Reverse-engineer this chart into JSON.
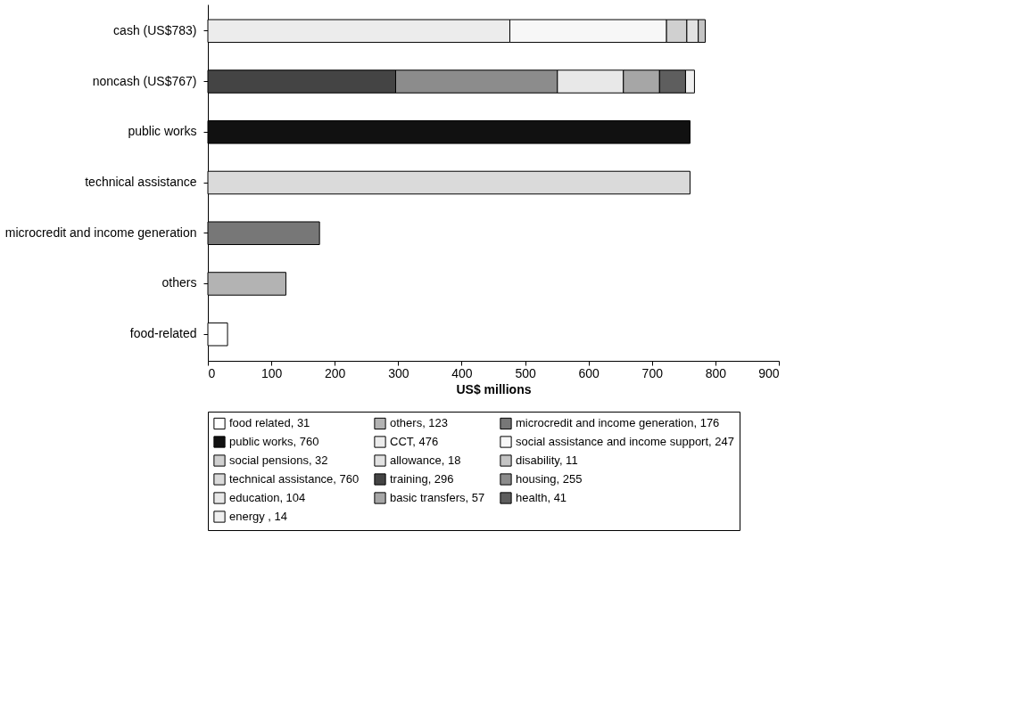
{
  "chart_data": {
    "type": "bar",
    "orientation": "horizontal",
    "stacked": true,
    "categories": [
      "cash (US$783)",
      "noncash (US$767)",
      "public works",
      "technical assistance",
      "microcredit and income generation",
      "others",
      "food-related"
    ],
    "xlabel": "US$ millions",
    "xlim": [
      0,
      900
    ],
    "xticks": [
      0,
      100,
      200,
      300,
      400,
      500,
      600,
      700,
      800,
      900
    ],
    "grid": false,
    "legend": "bottom",
    "series": [
      {
        "name": "food related, 31",
        "color": "#ffffff",
        "values": [
          null,
          null,
          null,
          null,
          null,
          null,
          31
        ]
      },
      {
        "name": "others, 123",
        "color": "#b3b3b3",
        "values": [
          null,
          null,
          null,
          null,
          null,
          123,
          null
        ]
      },
      {
        "name": "microcredit and income generation, 176",
        "color": "#777777",
        "values": [
          null,
          null,
          null,
          null,
          176,
          null,
          null
        ]
      },
      {
        "name": "public works, 760",
        "color": "#111111",
        "values": [
          null,
          null,
          760,
          null,
          null,
          null,
          null
        ]
      },
      {
        "name": "CCT, 476",
        "color": "#ececec",
        "values": [
          476,
          null,
          null,
          null,
          null,
          null,
          null
        ]
      },
      {
        "name": "social assistance and income support, 247",
        "color": "#f7f7f7",
        "values": [
          247,
          null,
          null,
          null,
          null,
          null,
          null
        ]
      },
      {
        "name": "social pensions, 32",
        "color": "#d0d0d0",
        "values": [
          32,
          null,
          null,
          null,
          null,
          null,
          null
        ]
      },
      {
        "name": "allowance, 18",
        "color": "#e2e2e2",
        "values": [
          18,
          null,
          null,
          null,
          null,
          null,
          null
        ]
      },
      {
        "name": "disability, 11",
        "color": "#c4c4c4",
        "values": [
          11,
          null,
          null,
          null,
          null,
          null,
          null
        ]
      },
      {
        "name": "technical assistance, 760",
        "color": "#dadada",
        "values": [
          null,
          null,
          null,
          760,
          null,
          null,
          null
        ]
      },
      {
        "name": "training, 296",
        "color": "#444444",
        "values": [
          null,
          296,
          null,
          null,
          null,
          null,
          null
        ]
      },
      {
        "name": "housing, 255",
        "color": "#8c8c8c",
        "values": [
          null,
          255,
          null,
          null,
          null,
          null,
          null
        ]
      },
      {
        "name": "education, 104",
        "color": "#e8e8e8",
        "values": [
          null,
          104,
          null,
          null,
          null,
          null,
          null
        ]
      },
      {
        "name": "basic transfers, 57",
        "color": "#a6a6a6",
        "values": [
          null,
          57,
          null,
          null,
          null,
          null,
          null
        ]
      },
      {
        "name": "health, 41",
        "color": "#5e5e5e",
        "values": [
          null,
          41,
          null,
          null,
          null,
          null,
          null
        ]
      },
      {
        "name": "energy , 14",
        "color": "#f0f0f0",
        "values": [
          null,
          14,
          null,
          null,
          null,
          null,
          null
        ]
      }
    ]
  }
}
